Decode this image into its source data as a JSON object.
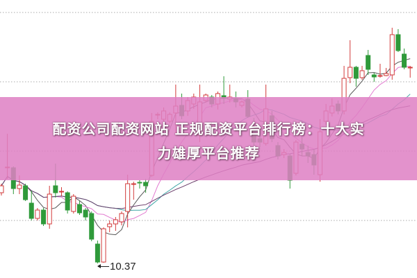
{
  "title": {
    "line1": "配资公司配资网站 正规配资平台排行榜：十大实",
    "line2": "力雄厚平台推荐"
  },
  "chart_data": {
    "type": "candlestick",
    "low_marker_label": "10.37",
    "low_marker_value": 10.37,
    "grid": true,
    "colors": {
      "up": "#d23a3a",
      "down": "#2f9a3a",
      "band": "#de80c4"
    },
    "moving_averages": [
      {
        "period": 5,
        "color": "#555555"
      },
      {
        "period": 10,
        "color": "#e27ad0"
      },
      {
        "period": 20,
        "color": "#3fa5a5"
      },
      {
        "period": 40,
        "color": "#6a3d6a"
      }
    ],
    "ohlc": [
      [
        11.39,
        11.52,
        11.35,
        11.49
      ],
      [
        11.75,
        12.24,
        11.59,
        11.76
      ],
      [
        11.75,
        11.77,
        11.37,
        11.45
      ],
      [
        11.45,
        11.64,
        11.37,
        11.5
      ],
      [
        11.49,
        11.52,
        11.27,
        11.29
      ],
      [
        11.24,
        11.42,
        10.99,
        11.02
      ],
      [
        11.02,
        11.17,
        10.99,
        11.14
      ],
      [
        11.14,
        11.17,
        10.91,
        10.94
      ],
      [
        10.94,
        11.49,
        10.87,
        11.37
      ],
      [
        11.49,
        11.81,
        11.32,
        11.39
      ],
      [
        11.4,
        11.47,
        11.34,
        11.41
      ],
      [
        11.39,
        11.41,
        11.09,
        11.14
      ],
      [
        11.12,
        11.37,
        11.09,
        11.34
      ],
      [
        11.22,
        11.27,
        11.07,
        11.1
      ],
      [
        11.14,
        11.17,
        10.99,
        11.04
      ],
      [
        11.09,
        11.12,
        10.69,
        10.72
      ],
      [
        10.65,
        10.7,
        10.37,
        10.39
      ],
      [
        10.39,
        10.89,
        10.38,
        10.87
      ],
      [
        10.9,
        10.99,
        10.82,
        10.94
      ],
      [
        10.94,
        11.04,
        10.84,
        11.0
      ],
      [
        10.97,
        11.12,
        10.92,
        11.09
      ],
      [
        11.12,
        11.65,
        10.89,
        11.52
      ],
      [
        11.51,
        11.55,
        11.29,
        11.52
      ],
      [
        11.54,
        11.57,
        11.45,
        11.53
      ],
      [
        11.54,
        11.59,
        11.39,
        11.49
      ],
      [
        11.64,
        12.54,
        11.62,
        12.42
      ],
      [
        12.51,
        12.55,
        12.45,
        12.52
      ],
      [
        12.45,
        12.62,
        12.4,
        12.57
      ],
      [
        12.42,
        12.55,
        12.39,
        12.52
      ],
      [
        12.54,
        12.95,
        12.22,
        12.64
      ],
      [
        12.65,
        12.82,
        12.45,
        12.5
      ],
      [
        12.57,
        12.77,
        12.5,
        12.72
      ],
      [
        12.67,
        12.82,
        12.6,
        12.77
      ],
      [
        12.22,
        12.95,
        12.12,
        12.7
      ],
      [
        12.72,
        12.82,
        12.69,
        12.8
      ],
      [
        12.77,
        12.8,
        12.62,
        12.67
      ],
      [
        12.67,
        12.85,
        12.59,
        12.82
      ],
      [
        12.79,
        13.07,
        12.67,
        12.75
      ],
      [
        12.74,
        12.95,
        12.69,
        12.77
      ],
      [
        12.75,
        12.85,
        12.62,
        12.7
      ],
      [
        12.65,
        12.72,
        12.62,
        12.7
      ],
      [
        12.74,
        12.87,
        12.47,
        12.49
      ],
      [
        12.32,
        12.47,
        12.07,
        12.12
      ],
      [
        12.17,
        12.22,
        12.05,
        12.12
      ],
      [
        12.1,
        12.95,
        12.07,
        12.6
      ],
      [
        12.5,
        12.57,
        12.12,
        12.17
      ],
      [
        12.07,
        12.12,
        11.87,
        11.92
      ],
      [
        11.94,
        12.02,
        11.89,
        11.97
      ],
      [
        11.92,
        11.95,
        11.45,
        11.57
      ],
      [
        11.67,
        12.15,
        11.64,
        12.12
      ],
      [
        12.09,
        12.19,
        11.92,
        12.02
      ],
      [
        11.97,
        12.07,
        11.82,
        11.92
      ],
      [
        11.94,
        12.02,
        11.65,
        11.79
      ],
      [
        11.65,
        12.45,
        11.55,
        12.27
      ],
      [
        12.42,
        12.67,
        12.37,
        12.57
      ],
      [
        12.54,
        12.75,
        12.49,
        12.64
      ],
      [
        12.67,
        12.72,
        12.52,
        12.57
      ],
      [
        12.57,
        13.22,
        12.52,
        13.04
      ],
      [
        13.05,
        13.59,
        12.97,
        13.2
      ],
      [
        13.2,
        13.22,
        12.92,
        13.04
      ],
      [
        13.05,
        13.22,
        13.02,
        13.15
      ],
      [
        13.37,
        13.45,
        13.09,
        13.17
      ],
      [
        13.09,
        13.12,
        12.99,
        13.06
      ],
      [
        13.07,
        13.25,
        13.05,
        13.08
      ],
      [
        13.08,
        13.19,
        13.07,
        13.11
      ],
      [
        13.09,
        13.77,
        13.02,
        13.67
      ],
      [
        13.67,
        13.75,
        13.42,
        13.44
      ],
      [
        13.39,
        13.47,
        13.17,
        13.2
      ],
      [
        13.19,
        13.22,
        13.05,
        13.2
      ]
    ]
  }
}
